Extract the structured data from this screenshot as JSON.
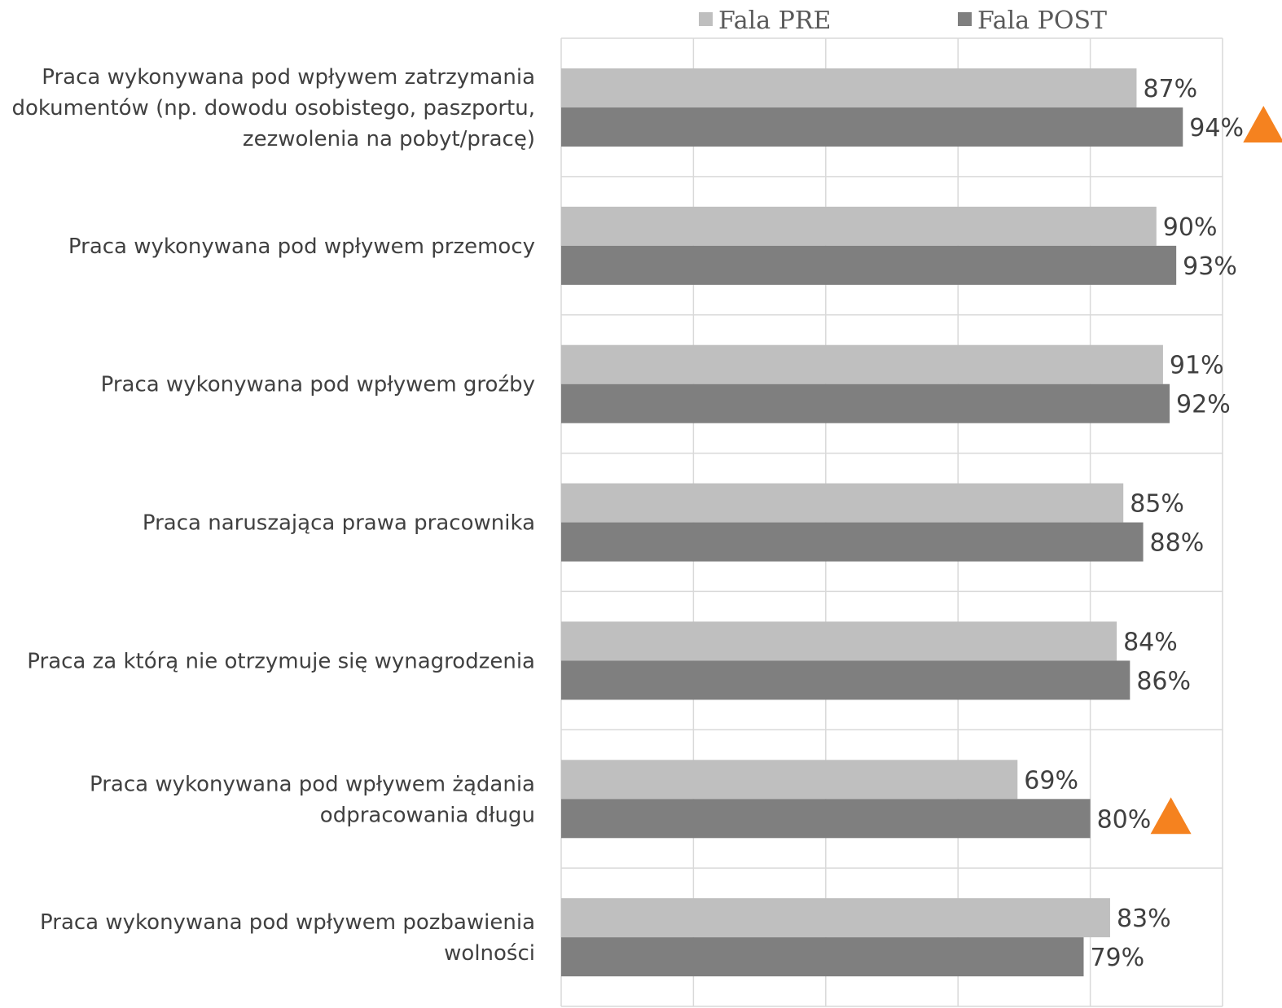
{
  "chart_data": {
    "type": "bar",
    "orientation": "horizontal",
    "categories": [
      "Praca wykonywana pod wpływem zatrzymania dokumentów (np. dowodu osobistego, paszportu, zezwolenia na pobyt/pracę)",
      "Praca wykonywana pod wpływem przemocy",
      "Praca wykonywana pod wpływem groźby",
      "Praca naruszająca prawa pracownika",
      "Praca za którą nie otrzymuje się wynagrodzenia",
      "Praca wykonywana pod wpływem żądania odpracowania długu",
      "Praca wykonywana pod wpływem pozbawienia wolności"
    ],
    "category_lines": [
      [
        "Praca wykonywana pod wpływem zatrzymania",
        "dokumentów (np. dowodu osobistego, paszportu,",
        "zezwolenia na pobyt/pracę)"
      ],
      [
        "Praca wykonywana pod wpływem przemocy"
      ],
      [
        "Praca wykonywana pod wpływem groźby"
      ],
      [
        "Praca naruszająca prawa pracownika"
      ],
      [
        "Praca za którą nie otrzymuje się wynagrodzenia"
      ],
      [
        "Praca wykonywana pod wpływem żądania",
        "odpracowania długu"
      ],
      [
        "Praca wykonywana pod wpływem pozbawienia",
        "wolności"
      ]
    ],
    "series": [
      {
        "name": "Fala PRE",
        "color": "#bfbfbf",
        "values": [
          87,
          90,
          91,
          85,
          84,
          69,
          83
        ],
        "labels": [
          "87%",
          "90%",
          "91%",
          "85%",
          "84%",
          "69%",
          "83%"
        ]
      },
      {
        "name": "Fala POST",
        "color": "#7f7f7f",
        "values": [
          94,
          93,
          92,
          88,
          86,
          80,
          79
        ],
        "labels": [
          "94%",
          "93%",
          "92%",
          "88%",
          "86%",
          "80%",
          "79%"
        ]
      }
    ],
    "significant_increase": [
      true,
      false,
      false,
      false,
      false,
      true,
      false
    ],
    "marker_color": "#f5821f",
    "marker_icon": "triangle-up-icon",
    "xlim": [
      0,
      100
    ],
    "grid": true,
    "legend": "top"
  }
}
